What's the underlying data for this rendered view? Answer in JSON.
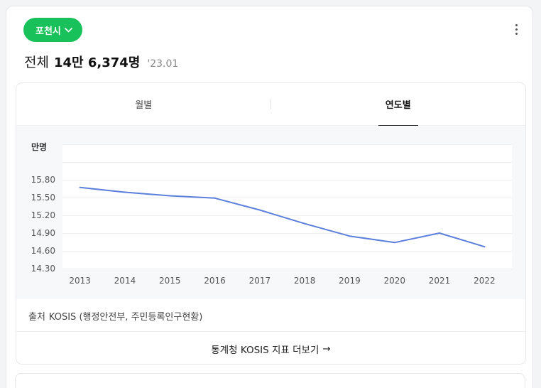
{
  "header": {
    "region_label": "포천시",
    "total_label": "전체",
    "total_value": "14만 6,374명",
    "date": "'23.01"
  },
  "tabs": [
    {
      "label": "월별",
      "active": false
    },
    {
      "label": "연도별",
      "active": true
    }
  ],
  "chart_data": {
    "type": "line",
    "unit_label": "만명",
    "categories": [
      "2013",
      "2014",
      "2015",
      "2016",
      "2017",
      "2018",
      "2019",
      "2020",
      "2021",
      "2022"
    ],
    "series": [
      {
        "values": [
          15.67,
          15.59,
          15.53,
          15.49,
          15.29,
          15.06,
          14.85,
          14.74,
          14.9,
          14.67
        ]
      }
    ],
    "yticks": [
      "15.80",
      "15.50",
      "15.20",
      "14.90",
      "14.60",
      "14.30"
    ],
    "ylim": [
      14.3,
      16.4
    ],
    "grid": true,
    "line_color": "#5b7fdb"
  },
  "source": {
    "label": "출처",
    "text": "KOSIS (행정안전부, 주민등록인구현황)"
  },
  "more_link": {
    "label": "통계청 KOSIS 지표 더보기",
    "arrow": "→"
  }
}
